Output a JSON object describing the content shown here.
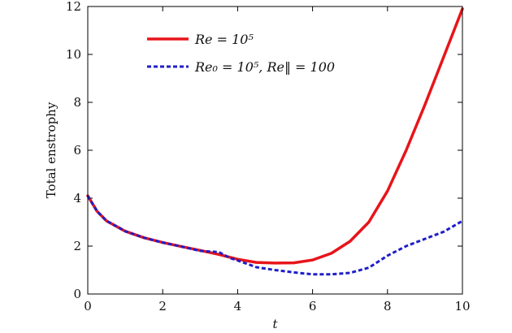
{
  "chart_data": {
    "type": "line",
    "title": "",
    "xlabel": "t",
    "ylabel": "Total enstrophy",
    "xlim": [
      0,
      10
    ],
    "ylim": [
      0,
      12
    ],
    "xticks": [
      0,
      2,
      4,
      6,
      8,
      10
    ],
    "yticks": [
      0,
      2,
      4,
      6,
      8,
      10,
      12
    ],
    "grid": false,
    "legend_position": "top-left",
    "series": [
      {
        "name": "Re = 10^5",
        "legend_text": "Re = 10⁵",
        "color": "#e8141a",
        "style": "solid",
        "x": [
          0,
          0.25,
          0.5,
          1,
          1.5,
          2,
          2.5,
          3,
          3.5,
          4,
          4.5,
          5,
          5.5,
          6,
          6.5,
          7,
          7.5,
          8,
          8.5,
          9,
          9.5,
          10
        ],
        "y": [
          4.1,
          3.45,
          3.05,
          2.62,
          2.35,
          2.15,
          1.98,
          1.82,
          1.65,
          1.45,
          1.32,
          1.29,
          1.3,
          1.42,
          1.7,
          2.2,
          3.0,
          4.3,
          6.0,
          7.9,
          9.9,
          11.9
        ]
      },
      {
        "name": "Re_0 = 10^5, Re_|| = 100",
        "legend_text": "Re₀ = 10⁵,  Re‖ = 100",
        "color": "#1f1fc8",
        "style": "dashed",
        "x": [
          0,
          0.25,
          0.5,
          1,
          1.5,
          2,
          2.5,
          3,
          3.5,
          3.8,
          4,
          4.5,
          5,
          5.5,
          6,
          6.5,
          7,
          7.5,
          8,
          8.5,
          9,
          9.5,
          10
        ],
        "y": [
          4.1,
          3.45,
          3.05,
          2.62,
          2.35,
          2.15,
          1.98,
          1.8,
          1.75,
          1.5,
          1.4,
          1.12,
          1.0,
          0.9,
          0.82,
          0.82,
          0.88,
          1.1,
          1.6,
          2.0,
          2.3,
          2.6,
          3.05
        ]
      }
    ]
  }
}
